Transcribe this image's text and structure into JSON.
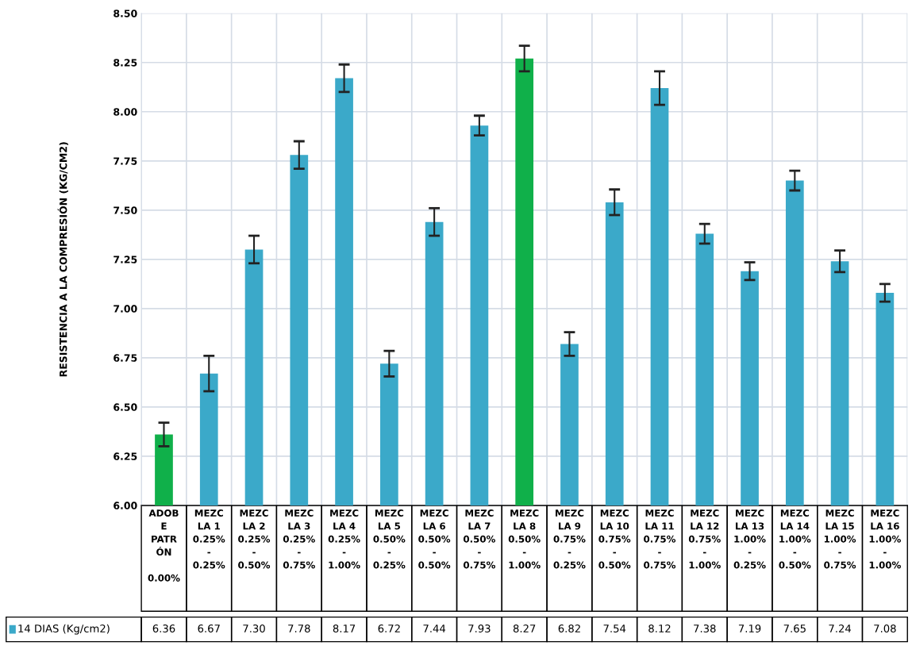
{
  "chart_data": {
    "type": "bar",
    "ylabel": "RESISTENCIA A LA COMPRESIÓN (KG/CM2)",
    "categories": [
      "ADOB\nE\nPATR\nÓN\n\n0.00%",
      "MEZC\nLA 1\n0.25%\n-\n0.25%",
      "MEZC\nLA 2\n0.25%\n-\n0.50%",
      "MEZC\nLA 3\n0.25%\n-\n0.75%",
      "MEZC\nLA 4\n0.25%\n-\n1.00%",
      "MEZC\nLA 5\n0.50%\n-\n0.25%",
      "MEZC\nLA 6\n0.50%\n-\n0.50%",
      "MEZC\nLA 7\n0.50%\n-\n0.75%",
      "MEZC\nLA 8\n0.50%\n-\n1.00%",
      "MEZC\nLA 9\n0.75%\n-\n0.25%",
      "MEZC\nLA 10\n0.75%\n-\n0.50%",
      "MEZC\nLA 11\n0.75%\n-\n0.75%",
      "MEZC\nLA 12\n0.75%\n-\n1.00%",
      "MEZC\nLA 13\n1.00%\n-\n0.25%",
      "MEZC\nLA 14\n1.00%\n-\n0.50%",
      "MEZC\nLA 15\n1.00%\n-\n0.75%",
      "MEZC\nLA 16\n1.00%\n-\n1.00%"
    ],
    "series": [
      {
        "name": "14 DIAS (Kg/cm2)",
        "color": "#3ba9c9",
        "colors": [
          "#10b04a",
          "#3ba9c9",
          "#3ba9c9",
          "#3ba9c9",
          "#3ba9c9",
          "#3ba9c9",
          "#3ba9c9",
          "#3ba9c9",
          "#10b04a",
          "#3ba9c9",
          "#3ba9c9",
          "#3ba9c9",
          "#3ba9c9",
          "#3ba9c9",
          "#3ba9c9",
          "#3ba9c9",
          "#3ba9c9"
        ],
        "values": [
          6.36,
          6.67,
          7.3,
          7.78,
          8.17,
          6.72,
          7.44,
          7.93,
          8.27,
          6.82,
          7.54,
          8.12,
          7.38,
          7.19,
          7.65,
          7.24,
          7.08
        ],
        "value_labels": [
          "6.36",
          "6.67",
          "7.30",
          "7.78",
          "8.17",
          "6.72",
          "7.44",
          "7.93",
          "8.27",
          "6.82",
          "7.54",
          "8.12",
          "7.38",
          "7.19",
          "7.65",
          "7.24",
          "7.08"
        ],
        "errors": [
          0.06,
          0.09,
          0.07,
          0.07,
          0.07,
          0.065,
          0.07,
          0.05,
          0.065,
          0.06,
          0.065,
          0.085,
          0.05,
          0.045,
          0.05,
          0.055,
          0.045
        ]
      }
    ],
    "ylim": [
      6.0,
      8.5
    ],
    "yticks": [
      {
        "value": 6.0,
        "label": "6.00"
      },
      {
        "value": 6.25,
        "label": "6.25"
      },
      {
        "value": 6.5,
        "label": "6.50"
      },
      {
        "value": 6.75,
        "label": "6.75"
      },
      {
        "value": 7.0,
        "label": "7.00"
      },
      {
        "value": 7.25,
        "label": "7.25"
      },
      {
        "value": 7.5,
        "label": "7.50"
      },
      {
        "value": 7.75,
        "label": "7.75"
      },
      {
        "value": 8.0,
        "label": "8.00"
      },
      {
        "value": 8.25,
        "label": "8.25"
      },
      {
        "value": 8.5,
        "label": "8.50"
      }
    ],
    "grid": true,
    "legend": "bottom"
  }
}
